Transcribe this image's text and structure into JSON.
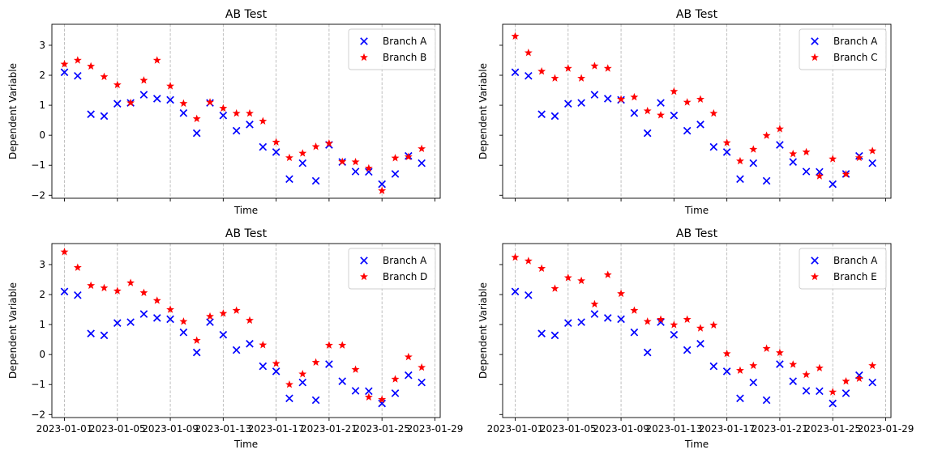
{
  "colors": {
    "branch_a": "#0000ff",
    "challenger": "#ff0000",
    "grid": "#b0b0b0"
  },
  "chart_data": [
    {
      "type": "scatter",
      "title": "AB Test",
      "xlabel": "Time",
      "ylabel": "Dependent Variable",
      "ylim": [
        -2.1,
        3.7
      ],
      "yticks": [
        "−2",
        "−1",
        "0",
        "1",
        "2",
        "3"
      ],
      "yticks_num": [
        -2,
        -1,
        0,
        1,
        2,
        3
      ],
      "xticks": [
        "2023-01-01",
        "2023-01-05",
        "2023-01-09",
        "2023-01-13",
        "2023-01-17",
        "2023-01-21",
        "2023-01-25",
        "2023-01-29"
      ],
      "show_xtick_labels": false,
      "show_ytick_labels": true,
      "legend": {
        "placement": "top-right",
        "entries": [
          "Branch A",
          "Branch B"
        ]
      },
      "series": [
        {
          "name": "Branch A",
          "marker": "x",
          "values": [
            2.1,
            1.98,
            0.7,
            0.64,
            1.05,
            1.08,
            1.35,
            1.22,
            1.18,
            0.74,
            0.07,
            1.08,
            0.66,
            0.15,
            0.36,
            -0.39,
            -0.56,
            -1.46,
            -0.93,
            -1.52,
            -0.32,
            -0.89,
            -1.21,
            -1.22,
            -1.63,
            -1.29,
            -0.69,
            -0.93
          ]
        },
        {
          "name": "Branch B",
          "marker": "star",
          "values": [
            2.37,
            2.5,
            2.3,
            1.95,
            1.68,
            1.08,
            1.83,
            2.5,
            1.64,
            1.06,
            0.55,
            1.1,
            0.9,
            0.73,
            0.73,
            0.47,
            -0.23,
            -0.75,
            -0.6,
            -0.38,
            -0.27,
            -0.88,
            -0.89,
            -1.1,
            -1.85,
            -0.76,
            -0.72,
            -0.45
          ]
        }
      ]
    },
    {
      "type": "scatter",
      "title": "AB Test",
      "xlabel": "Time",
      "ylabel": "Dependent Variable",
      "ylim": [
        -2.1,
        3.7
      ],
      "yticks": [
        "−2",
        "−1",
        "0",
        "1",
        "2",
        "3"
      ],
      "yticks_num": [
        -2,
        -1,
        0,
        1,
        2,
        3
      ],
      "xticks": [
        "2023-01-01",
        "2023-01-05",
        "2023-01-09",
        "2023-01-13",
        "2023-01-17",
        "2023-01-21",
        "2023-01-25",
        "2023-01-29"
      ],
      "show_xtick_labels": false,
      "show_ytick_labels": false,
      "legend": {
        "placement": "top-right",
        "entries": [
          "Branch A",
          "Branch C"
        ]
      },
      "series": [
        {
          "name": "Branch A",
          "marker": "x",
          "values": [
            2.1,
            1.98,
            0.7,
            0.64,
            1.05,
            1.08,
            1.35,
            1.22,
            1.18,
            0.74,
            0.07,
            1.08,
            0.66,
            0.15,
            0.36,
            -0.39,
            -0.56,
            -1.46,
            -0.93,
            -1.52,
            -0.32,
            -0.89,
            -1.21,
            -1.22,
            -1.63,
            -1.29,
            -0.69,
            -0.93
          ]
        },
        {
          "name": "Branch C",
          "marker": "star",
          "values": [
            3.3,
            2.75,
            2.13,
            1.9,
            2.23,
            1.9,
            2.31,
            2.23,
            1.2,
            1.27,
            0.81,
            0.67,
            1.46,
            1.1,
            1.2,
            0.73,
            -0.25,
            -0.86,
            -0.47,
            -0.01,
            0.21,
            -0.62,
            -0.56,
            -1.36,
            -0.79,
            -1.3,
            -0.75,
            -0.52
          ]
        }
      ]
    },
    {
      "type": "scatter",
      "title": "AB Test",
      "xlabel": "Time",
      "ylabel": "Dependent Variable",
      "ylim": [
        -2.1,
        3.7
      ],
      "yticks": [
        "−2",
        "−1",
        "0",
        "1",
        "2",
        "3"
      ],
      "yticks_num": [
        -2,
        -1,
        0,
        1,
        2,
        3
      ],
      "xticks": [
        "2023-01-01",
        "2023-01-05",
        "2023-01-09",
        "2023-01-13",
        "2023-01-17",
        "2023-01-21",
        "2023-01-25",
        "2023-01-29"
      ],
      "show_xtick_labels": true,
      "show_ytick_labels": true,
      "legend": {
        "placement": "top-right",
        "entries": [
          "Branch A",
          "Branch D"
        ]
      },
      "series": [
        {
          "name": "Branch A",
          "marker": "x",
          "values": [
            2.1,
            1.98,
            0.7,
            0.64,
            1.05,
            1.08,
            1.35,
            1.22,
            1.18,
            0.74,
            0.07,
            1.08,
            0.66,
            0.15,
            0.36,
            -0.39,
            -0.56,
            -1.46,
            -0.93,
            -1.52,
            -0.32,
            -0.89,
            -1.21,
            -1.22,
            -1.63,
            -1.29,
            -0.69,
            -0.93
          ]
        },
        {
          "name": "Branch D",
          "marker": "star",
          "values": [
            3.42,
            2.9,
            2.3,
            2.22,
            2.12,
            2.39,
            2.06,
            1.8,
            1.5,
            1.1,
            0.47,
            1.27,
            1.37,
            1.47,
            1.14,
            0.32,
            -0.3,
            -1.0,
            -0.65,
            -0.26,
            0.31,
            0.31,
            -0.5,
            -1.42,
            -1.5,
            -0.82,
            -0.08,
            -0.43
          ]
        }
      ]
    },
    {
      "type": "scatter",
      "title": "AB Test",
      "xlabel": "Time",
      "ylabel": "Dependent Variable",
      "ylim": [
        -2.1,
        3.7
      ],
      "yticks": [
        "−2",
        "−1",
        "0",
        "1",
        "2",
        "3"
      ],
      "yticks_num": [
        -2,
        -1,
        0,
        1,
        2,
        3
      ],
      "xticks": [
        "2023-01-01",
        "2023-01-05",
        "2023-01-09",
        "2023-01-13",
        "2023-01-17",
        "2023-01-21",
        "2023-01-25",
        "2023-01-29"
      ],
      "show_xtick_labels": true,
      "show_ytick_labels": false,
      "legend": {
        "placement": "top-right",
        "entries": [
          "Branch A",
          "Branch E"
        ]
      },
      "series": [
        {
          "name": "Branch A",
          "marker": "x",
          "values": [
            2.1,
            1.98,
            0.7,
            0.64,
            1.05,
            1.08,
            1.35,
            1.22,
            1.18,
            0.74,
            0.07,
            1.08,
            0.66,
            0.15,
            0.36,
            -0.39,
            -0.56,
            -1.46,
            -0.93,
            -1.52,
            -0.32,
            -0.89,
            -1.21,
            -1.22,
            -1.63,
            -1.29,
            -0.69,
            -0.93
          ]
        },
        {
          "name": "Branch E",
          "marker": "star",
          "values": [
            3.24,
            3.12,
            2.87,
            2.2,
            2.56,
            2.46,
            1.68,
            2.66,
            2.03,
            1.47,
            1.1,
            1.17,
            0.99,
            1.17,
            0.88,
            0.98,
            0.03,
            -0.53,
            -0.37,
            0.2,
            0.06,
            -0.33,
            -0.67,
            -0.45,
            -1.25,
            -0.89,
            -0.8,
            -0.37
          ]
        }
      ]
    }
  ]
}
